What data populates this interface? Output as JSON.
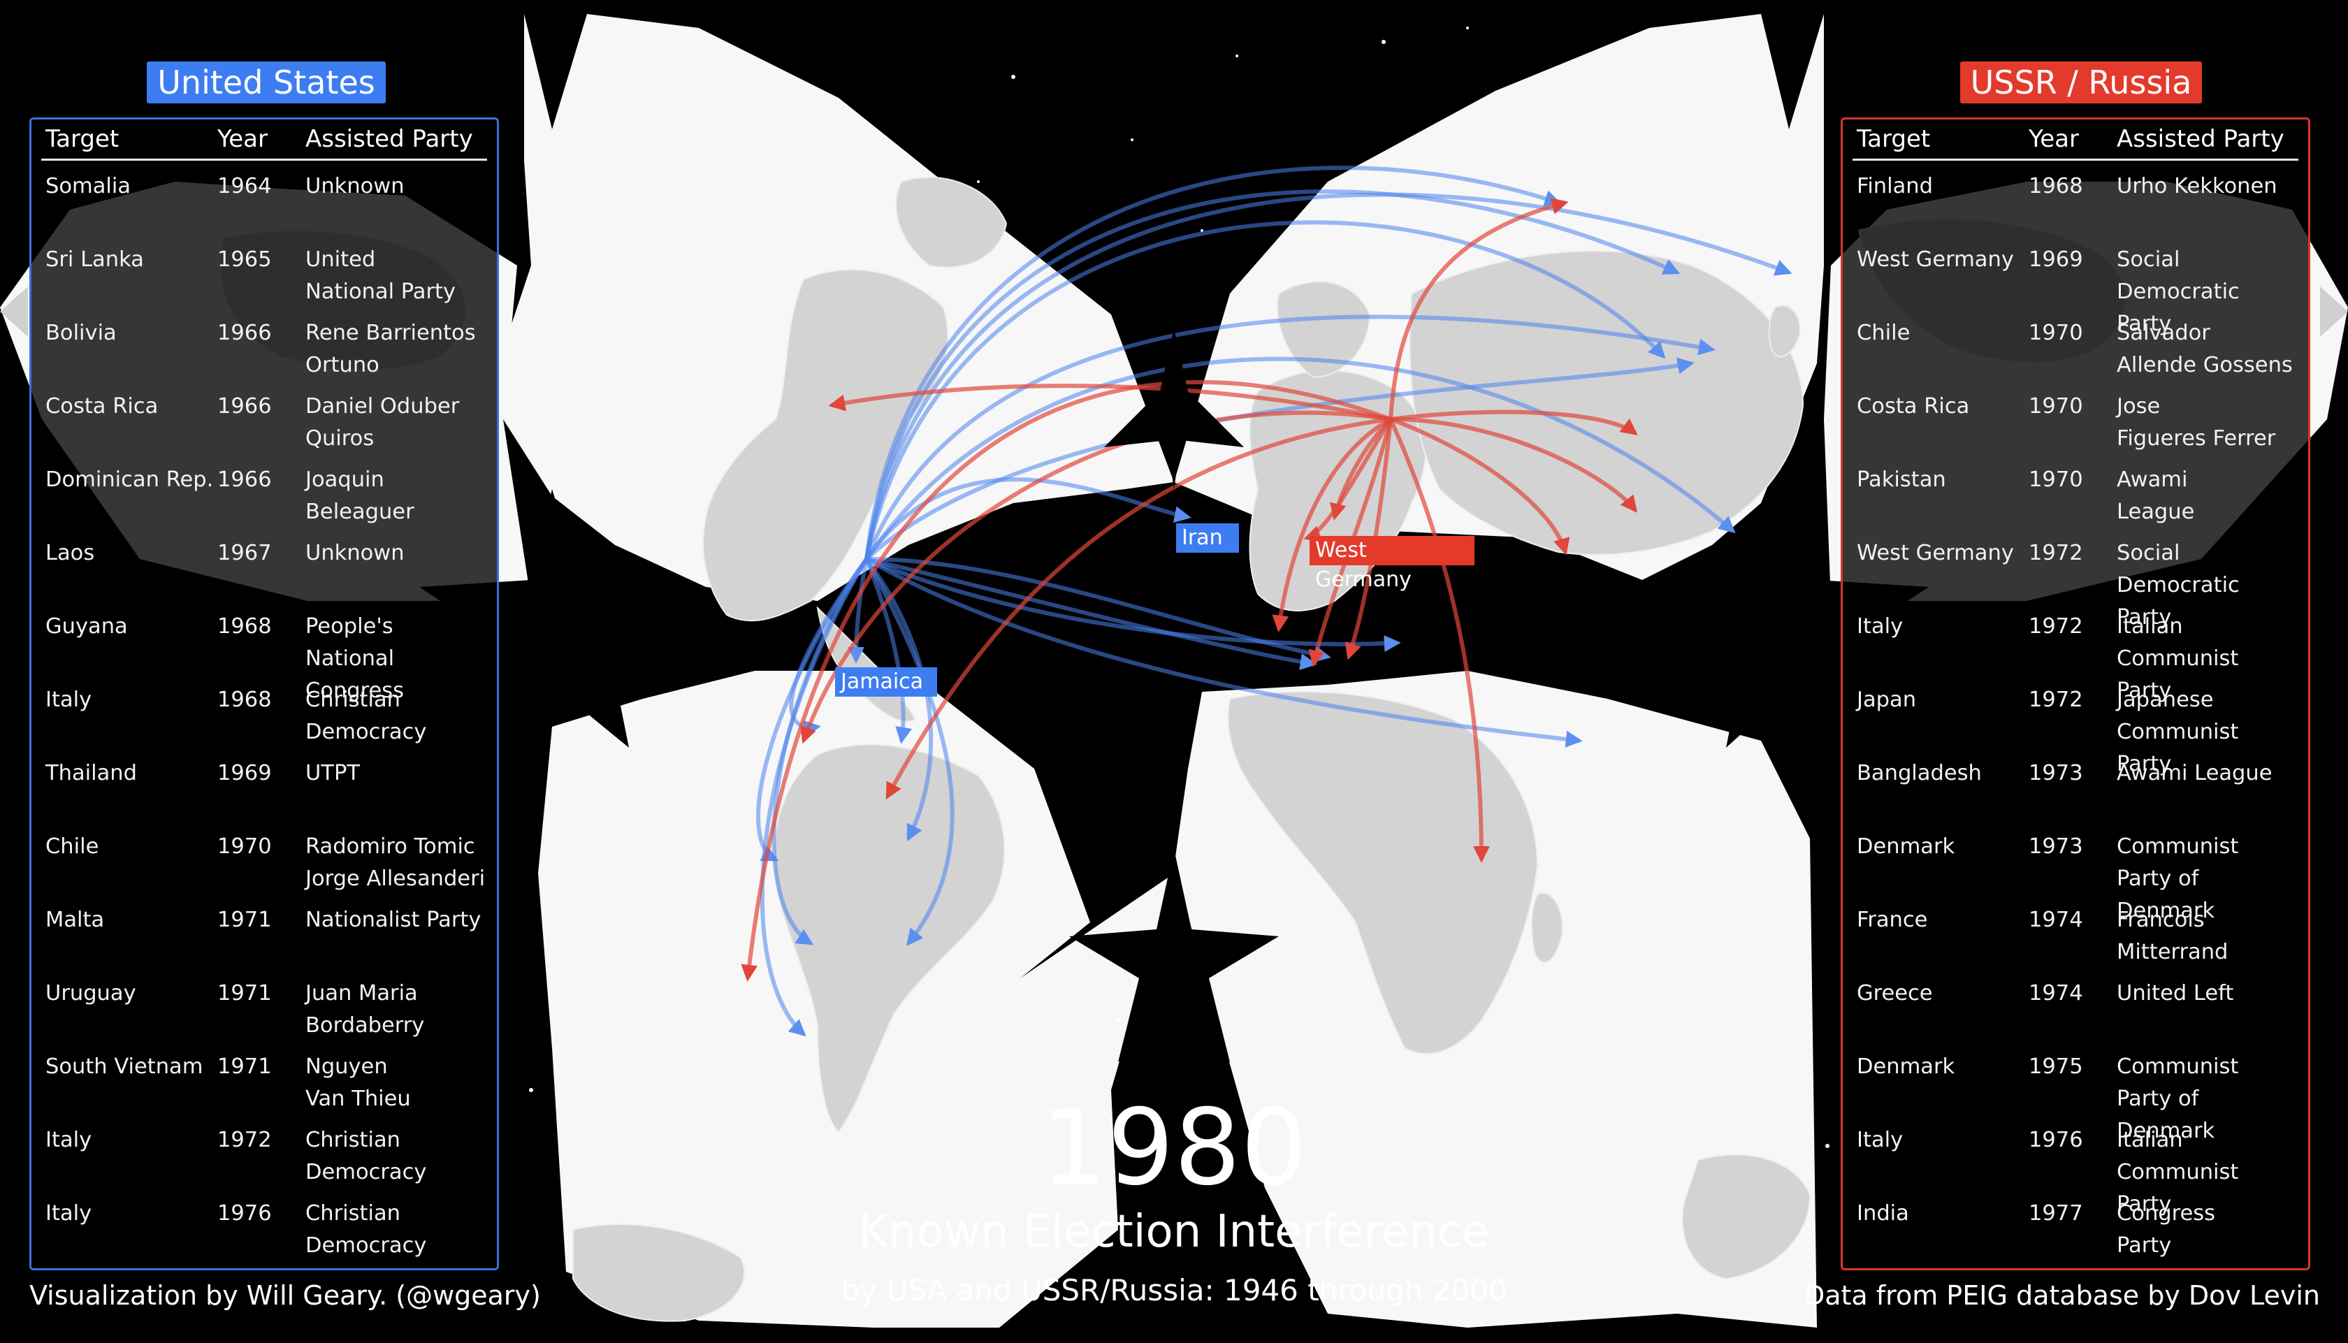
{
  "us_panel": {
    "badge": "United States",
    "headers": {
      "target": "Target",
      "year": "Year",
      "party": "Assisted Party"
    },
    "rows": [
      {
        "target": "Somalia",
        "year": "1964",
        "party": "Unknown"
      },
      {
        "target": "Sri Lanka",
        "year": "1965",
        "party": "United\nNational Party"
      },
      {
        "target": "Bolivia",
        "year": "1966",
        "party": "Rene Barrientos\nOrtuno"
      },
      {
        "target": "Costa Rica",
        "year": "1966",
        "party": "Daniel Oduber\nQuiros"
      },
      {
        "target": "Dominican Rep.",
        "year": "1966",
        "party": "Joaquin\nBeleaguer"
      },
      {
        "target": "Laos",
        "year": "1967",
        "party": "Unknown"
      },
      {
        "target": "Guyana",
        "year": "1968",
        "party": "People's\nNational Congress"
      },
      {
        "target": "Italy",
        "year": "1968",
        "party": "Christian\nDemocracy"
      },
      {
        "target": "Thailand",
        "year": "1969",
        "party": "UTPT"
      },
      {
        "target": "Chile",
        "year": "1970",
        "party": "Radomiro Tomic\nJorge Allesanderi"
      },
      {
        "target": "Malta",
        "year": "1971",
        "party": "Nationalist Party"
      },
      {
        "target": "Uruguay",
        "year": "1971",
        "party": "Juan Maria\nBordaberry"
      },
      {
        "target": "South Vietnam",
        "year": "1971",
        "party": "Nguyen\nVan Thieu"
      },
      {
        "target": "Italy",
        "year": "1972",
        "party": "Christian\nDemocracy"
      },
      {
        "target": "Italy",
        "year": "1976",
        "party": "Christian\nDemocracy"
      }
    ]
  },
  "ussr_panel": {
    "badge": "USSR / Russia",
    "headers": {
      "target": "Target",
      "year": "Year",
      "party": "Assisted Party"
    },
    "rows": [
      {
        "target": "Finland",
        "year": "1968",
        "party": "Urho Kekkonen"
      },
      {
        "target": "West Germany",
        "year": "1969",
        "party": "Social\nDemocratic Party"
      },
      {
        "target": "Chile",
        "year": "1970",
        "party": "Salvador\nAllende Gossens"
      },
      {
        "target": "Costa Rica",
        "year": "1970",
        "party": "Jose\nFigueres Ferrer"
      },
      {
        "target": "Pakistan",
        "year": "1970",
        "party": "Awami\nLeague"
      },
      {
        "target": "West Germany",
        "year": "1972",
        "party": "Social\nDemocratic Party"
      },
      {
        "target": "Italy",
        "year": "1972",
        "party": "Italian\nCommunist Party"
      },
      {
        "target": "Japan",
        "year": "1972",
        "party": "Japanese\nCommunist Party"
      },
      {
        "target": "Bangladesh",
        "year": "1973",
        "party": "Awami League"
      },
      {
        "target": "Denmark",
        "year": "1973",
        "party": "Communist\nParty of Denmark"
      },
      {
        "target": "France",
        "year": "1974",
        "party": "Francois\nMitterrand"
      },
      {
        "target": "Greece",
        "year": "1974",
        "party": "United Left"
      },
      {
        "target": "Denmark",
        "year": "1975",
        "party": "Communist\nParty of Denmark"
      },
      {
        "target": "Italy",
        "year": "1976",
        "party": "Italian\nCommunist Party"
      },
      {
        "target": "India",
        "year": "1977",
        "party": "Congress\nParty"
      }
    ]
  },
  "map": {
    "labels": {
      "iran": "Iran",
      "jamaica": "Jamaica",
      "west_germany": "West Germany"
    },
    "colors": {
      "us": "#3d7df2",
      "ussr": "#e33a2c",
      "land": "#d3d3d3",
      "ocean": "#f7f7f7",
      "background": "#000000"
    }
  },
  "caption": {
    "year": "1980",
    "title": "Known Election Interference",
    "subtitle": "by USA and USSR/Russia: 1946 through 2000",
    "credit_left": "Visualization by Will Geary. (@wgeary)",
    "credit_right": "Data from PEIG database by Dov Levin"
  }
}
